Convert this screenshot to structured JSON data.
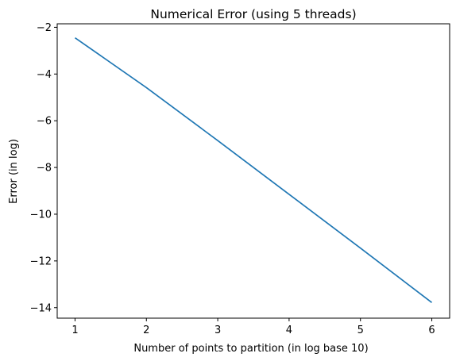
{
  "chart_data": {
    "type": "line",
    "title": "Numerical Error (using 5 threads)",
    "xlabel": "Number of points to partition (in log base 10)",
    "ylabel": "Error (in log)",
    "xlim": [
      0.75,
      6.25
    ],
    "ylim": [
      -14.45,
      -1.85
    ],
    "xticks": [
      1,
      2,
      3,
      4,
      5,
      6
    ],
    "yticks": [
      -14,
      -12,
      -10,
      -8,
      -6,
      -4,
      -2
    ],
    "grid": false,
    "series": [
      {
        "color": "#1f77b4",
        "x": [
          1,
          2,
          3,
          4,
          5,
          6
        ],
        "y": [
          -2.45,
          -4.58,
          -6.85,
          -9.15,
          -11.45,
          -13.78
        ]
      }
    ]
  }
}
